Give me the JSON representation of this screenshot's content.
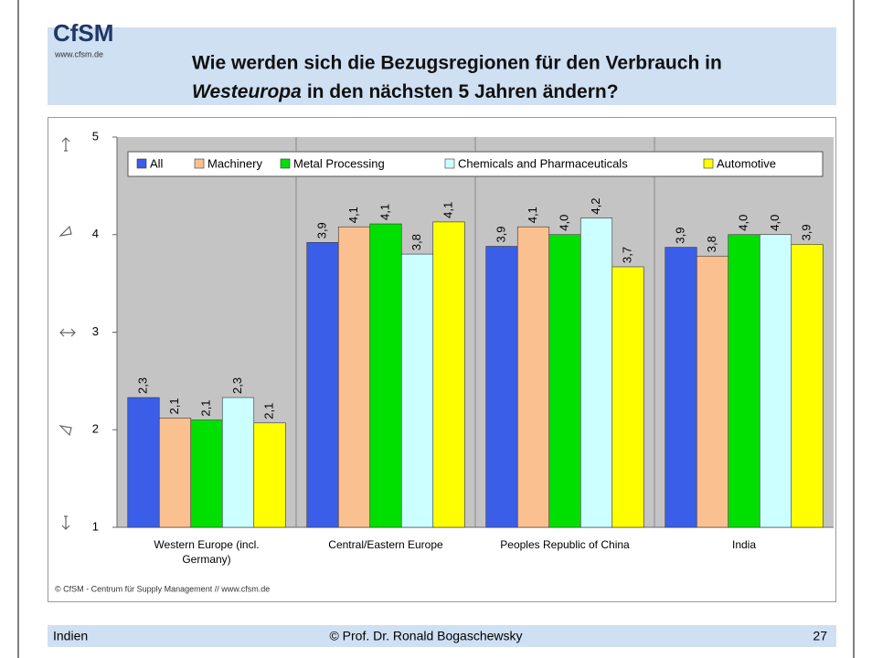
{
  "slide": {
    "logo": "CfSM",
    "url": "www.cfsm.de",
    "title_parts": [
      "Wie werden sich die Bezugsregionen für den Verbrauch in",
      "Westeuropa",
      "in den nächsten 5 Jahren ändern?"
    ],
    "footer_left": "Indien",
    "footer_center": "© Prof. Dr. Ronald Bogaschewsky",
    "page_number": "27"
  },
  "chart_data": {
    "type": "bar",
    "categories": [
      "Western Europe (incl. Germany)",
      "Central/Eastern Europe",
      "Peoples Republic of China",
      "India"
    ],
    "series": [
      {
        "name": "All",
        "color": "#3a5ee8",
        "values": [
          2.33,
          3.92,
          3.88,
          3.87
        ],
        "value_labels": [
          "2,3",
          "3,9",
          "3,9",
          "3,9"
        ]
      },
      {
        "name": "Machinery",
        "color": "#fac090",
        "values": [
          2.12,
          4.08,
          4.08,
          3.78
        ],
        "value_labels": [
          "2,1",
          "4,1",
          "4,1",
          "3,8"
        ]
      },
      {
        "name": "Metal Processing",
        "color": "#00e000",
        "values": [
          2.1,
          4.11,
          4.0,
          4.0
        ],
        "value_labels": [
          "2,1",
          "4,1",
          "4,0",
          "4,0"
        ]
      },
      {
        "name": "Chemicals and Pharmaceuticals",
        "color": "#ccffff",
        "values": [
          2.33,
          3.8,
          4.17,
          4.0
        ],
        "value_labels": [
          "2,3",
          "3,8",
          "4,2",
          "4,0"
        ]
      },
      {
        "name": "Automotive",
        "color": "#ffff00",
        "values": [
          2.07,
          4.13,
          3.67,
          3.9
        ],
        "value_labels": [
          "2,1",
          "4,1",
          "3,7",
          "3,9"
        ]
      }
    ],
    "ylim": [
      1,
      5
    ],
    "yticks": [
      1,
      2,
      3,
      4,
      5
    ],
    "legend": "top",
    "source": "© CfSM - Centrum für Supply Management // www.cfsm.de"
  }
}
